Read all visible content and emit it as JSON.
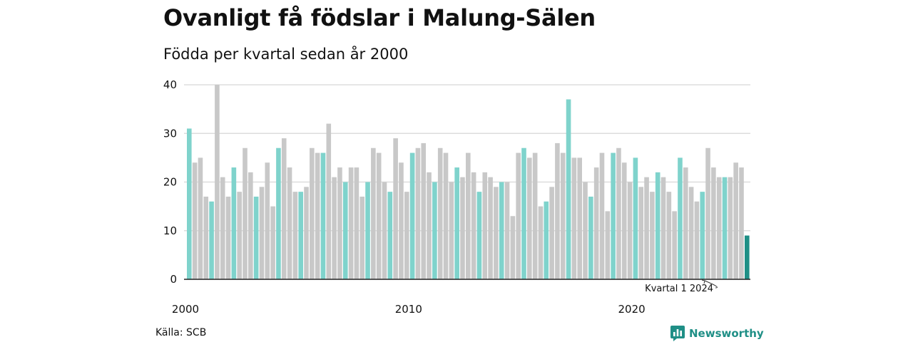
{
  "title": "Ovanligt få födslar i Malung-Sälen",
  "subtitle": "Födda per kvartal sedan år 2000",
  "source": "Källa: SCB",
  "brand": {
    "name": "Newsworthy",
    "icon": "newsworthy-logo-icon"
  },
  "colors": {
    "q1": "#7fd3cc",
    "other": "#c8c8c8",
    "latest": "#1f8f86",
    "grid": "#dddddd",
    "axis": "#222222"
  },
  "chart_data": {
    "type": "bar",
    "title": "Födda per kvartal sedan år 2000",
    "xlabel": "",
    "ylabel": "",
    "ylim": [
      0,
      40
    ],
    "y_ticks": [
      0,
      10,
      20,
      30,
      40
    ],
    "x_tick_labels": [
      {
        "label": "2000",
        "index": 0
      },
      {
        "label": "2010",
        "index": 40
      },
      {
        "label": "2020",
        "index": 80
      }
    ],
    "start": "2000 Q1",
    "highlight": "first quarter of each year",
    "annotation": {
      "text": "Kvartal 1 2024",
      "index": 96
    },
    "grid": true,
    "values": [
      31,
      24,
      25,
      17,
      16,
      40,
      21,
      17,
      23,
      18,
      27,
      22,
      17,
      19,
      24,
      15,
      27,
      29,
      23,
      18,
      18,
      19,
      27,
      26,
      26,
      32,
      21,
      23,
      20,
      23,
      23,
      17,
      20,
      27,
      26,
      20,
      18,
      29,
      24,
      18,
      26,
      27,
      28,
      22,
      20,
      27,
      26,
      20,
      23,
      21,
      26,
      22,
      18,
      22,
      21,
      19,
      20,
      20,
      13,
      26,
      27,
      25,
      26,
      15,
      16,
      19,
      28,
      26,
      37,
      25,
      25,
      20,
      17,
      23,
      26,
      14,
      26,
      27,
      24,
      20,
      25,
      19,
      21,
      18,
      22,
      21,
      18,
      14,
      25,
      23,
      19,
      16,
      18,
      27,
      23,
      21,
      21,
      21,
      24,
      23,
      9
    ]
  }
}
